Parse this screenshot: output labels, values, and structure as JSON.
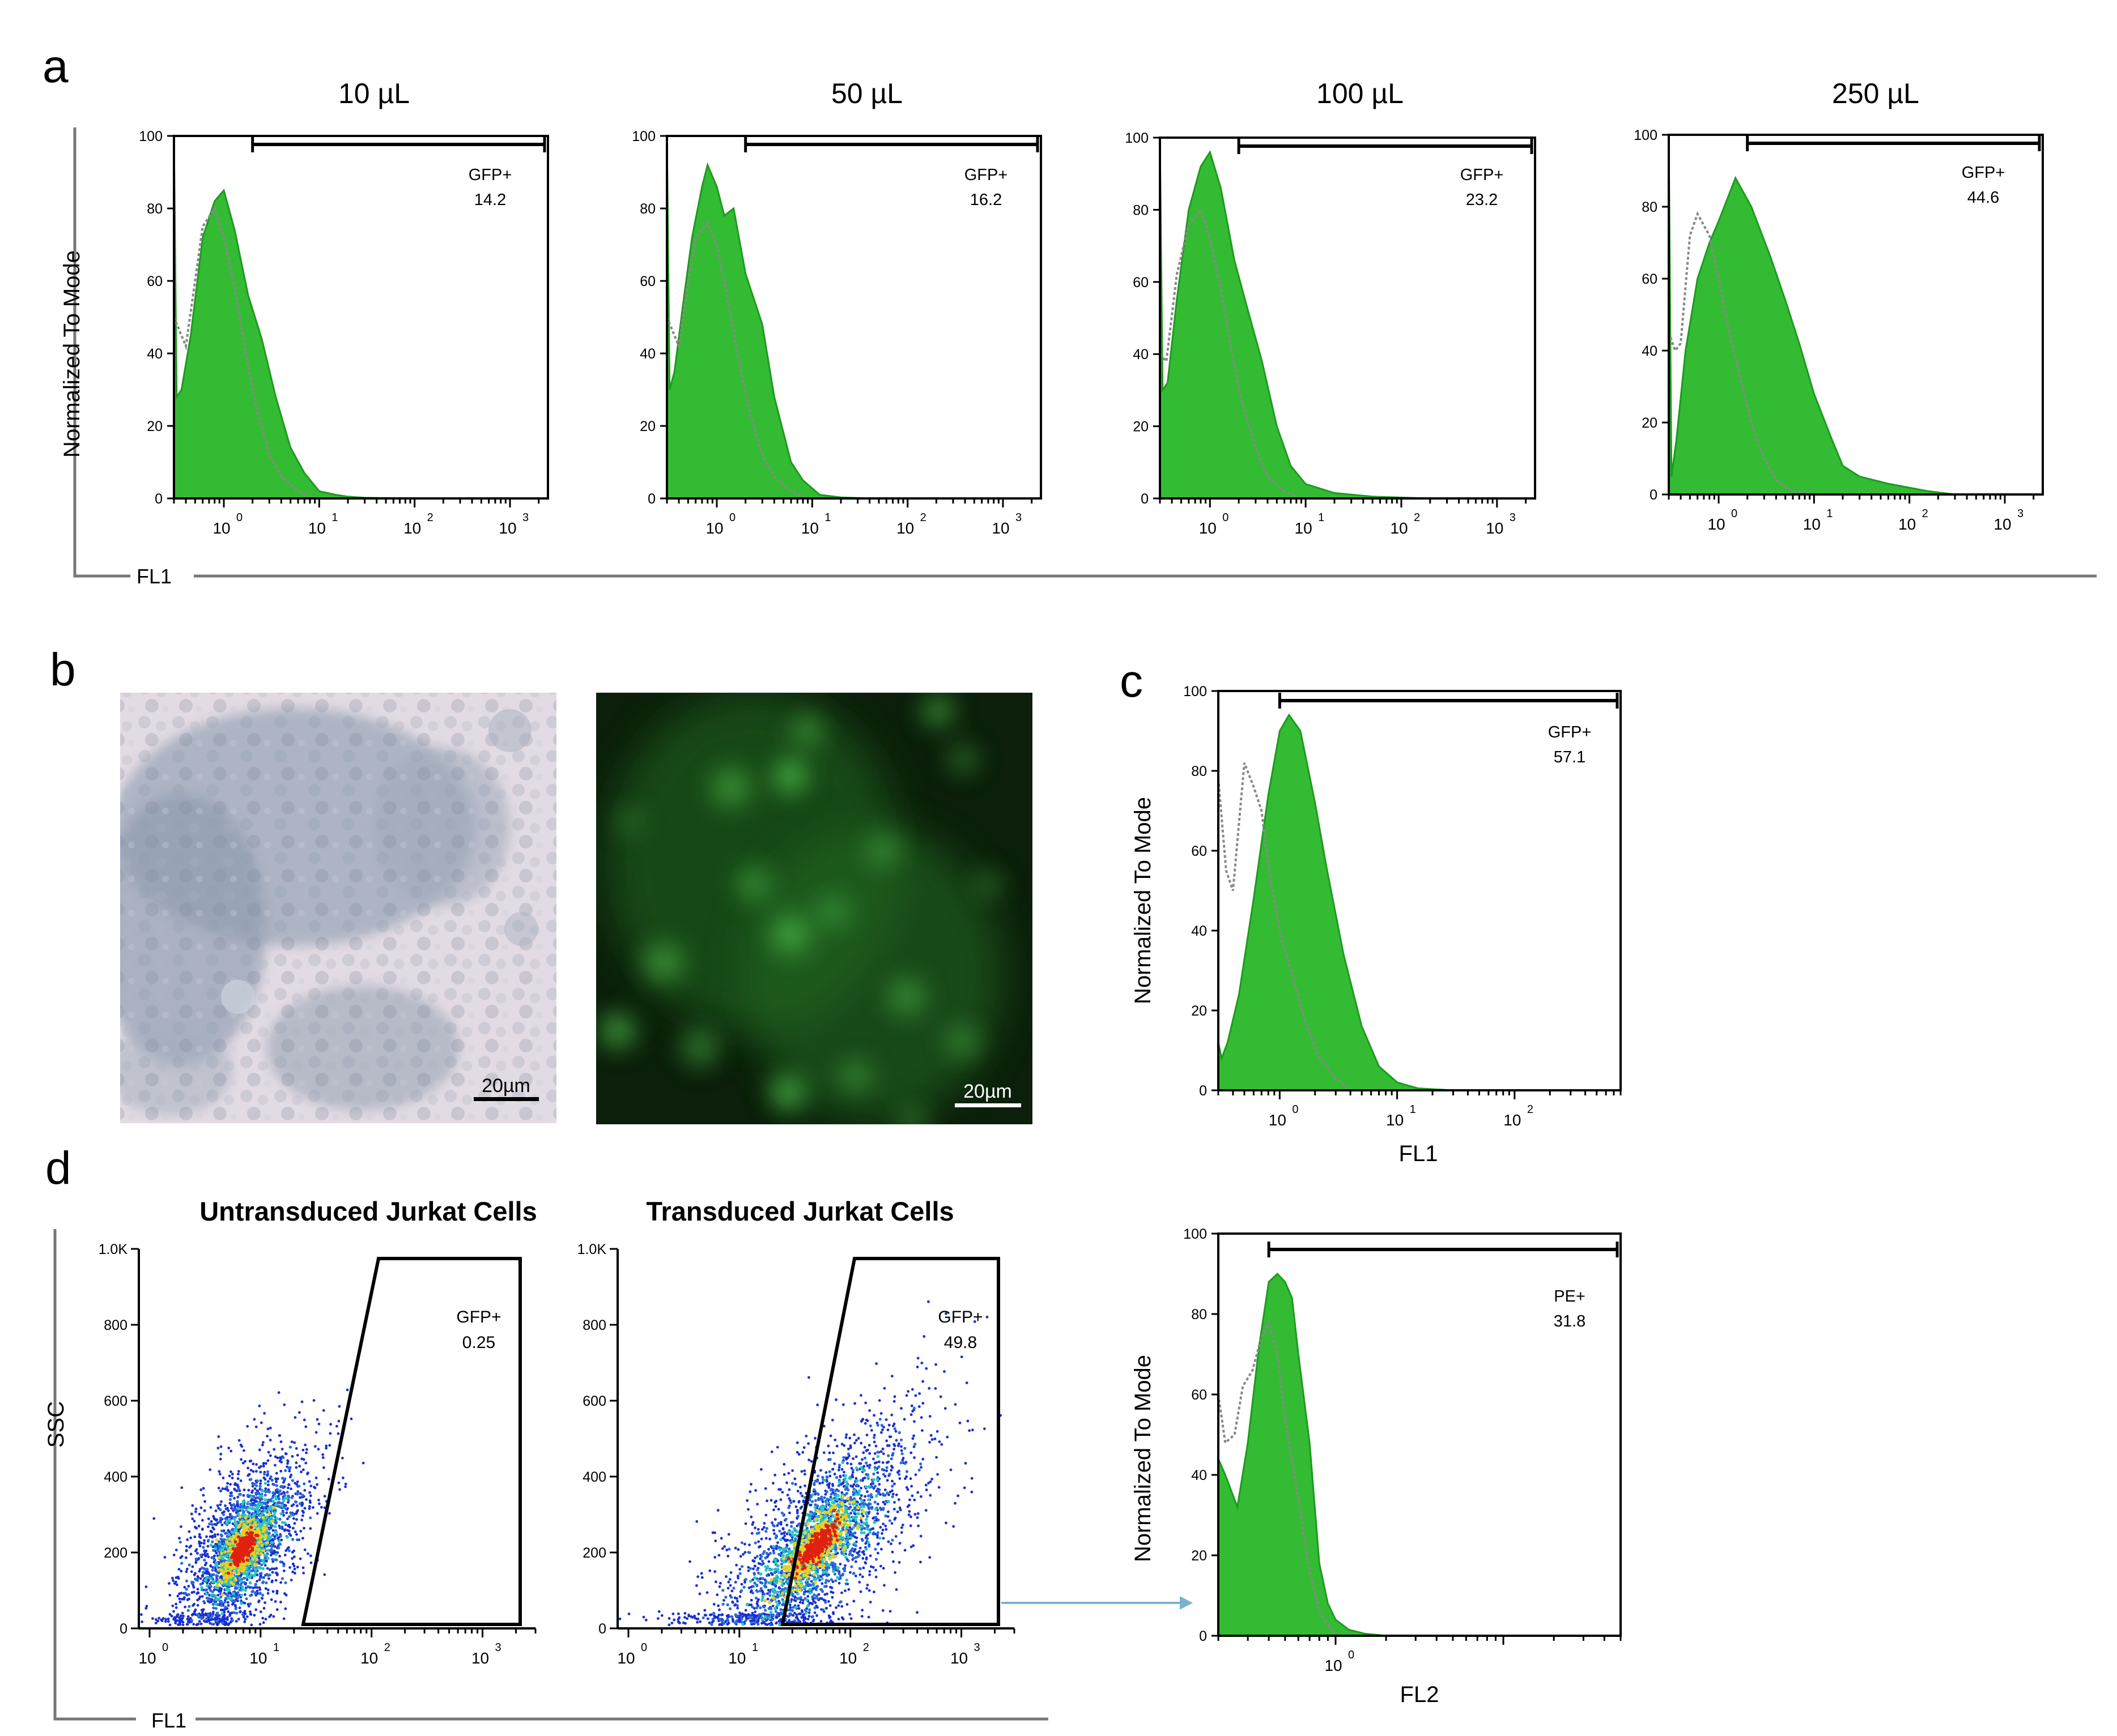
{
  "panel_labels": {
    "a": "a",
    "b": "b",
    "c": "c",
    "d": "d"
  },
  "panel_a": {
    "y_label": "Normalized To Mode",
    "x_label": "FL1",
    "gate_name": "GFP+",
    "y_ticks": [
      "0",
      "20",
      "40",
      "60",
      "80",
      "100"
    ],
    "x_ticks": [
      "10",
      "10",
      "10",
      "10"
    ],
    "x_exponents": [
      "0",
      "1",
      "2",
      "3"
    ],
    "histograms": [
      {
        "title": "10 µL",
        "gate_value": "14.2"
      },
      {
        "title": "50 µL",
        "gate_value": "16.2"
      },
      {
        "title": "100 µL",
        "gate_value": "23.2"
      },
      {
        "title": "250 µL",
        "gate_value": "44.6"
      }
    ]
  },
  "panel_b": {
    "brightfield_scale_bar": "20µm",
    "fluorescence_scale_bar": "20µm"
  },
  "panel_c": {
    "y_label": "Normalized To Mode",
    "x_label": "FL1",
    "gate_name": "GFP+",
    "gate_value": "57.1",
    "y_ticks": [
      "0",
      "20",
      "40",
      "60",
      "80",
      "100"
    ],
    "x_ticks": [
      "10",
      "10",
      "10"
    ],
    "x_exponents": [
      "0",
      "1",
      "2"
    ]
  },
  "panel_d": {
    "y_label": "SSC",
    "x_label": "FL1",
    "y_ticks": [
      "0",
      "200",
      "400",
      "600",
      "800",
      "1.0K"
    ],
    "x_ticks": [
      "10",
      "10",
      "10",
      "10"
    ],
    "x_exponents": [
      "0",
      "1",
      "2",
      "3"
    ],
    "untransduced": {
      "title": "Untransduced Jurkat Cells",
      "gate_name": "GFP+",
      "gate_value": "0.25"
    },
    "transduced": {
      "title": "Transduced Jurkat Cells",
      "gate_name": "GFP+",
      "gate_value": "49.8"
    },
    "pe_histogram": {
      "y_label": "Normalized To Mode",
      "x_label": "FL2",
      "gate_name": "PE+",
      "gate_value": "31.8",
      "y_ticks": [
        "0",
        "20",
        "40",
        "60",
        "80",
        "100"
      ],
      "x_tick": "10",
      "x_exponent": "0"
    }
  },
  "colors": {
    "histogram_fill": "#33bb33",
    "histogram_edge": "#1e9a1e",
    "control_line": "#888888",
    "arrow": "#7ab3cc",
    "density_low": "#1a2fd0",
    "density_mid": "#25c8c0",
    "density_high": "#e8d020",
    "density_peak": "#e02010"
  },
  "chart_data": [
    {
      "type": "area",
      "panel": "a",
      "title": "10 µL",
      "xlabel": "FL1",
      "ylabel": "Normalized To Mode",
      "x_scale": "log",
      "xlim": [
        0.3,
        2500
      ],
      "ylim": [
        0,
        100
      ],
      "gate": {
        "label": "GFP+",
        "value": 14.2,
        "range": [
          2,
          2500
        ]
      },
      "series": [
        {
          "name": "",
          "x": [
            0.3,
            0.32,
            0.36,
            0.45,
            0.6,
            0.8,
            1.0,
            1.3,
            1.8,
            2.5,
            3.5,
            5,
            7,
            10,
            15,
            20,
            30,
            100
          ],
          "y": [
            100,
            28,
            30,
            45,
            72,
            82,
            85,
            74,
            56,
            44,
            28,
            14,
            7,
            2,
            1,
            0.5,
            0.2,
            0
          ]
        },
        {
          "name": "",
          "x": [
            0.3,
            0.4,
            0.5,
            0.6,
            0.8,
            1.0,
            1.3,
            1.7,
            2.2,
            3,
            4,
            6,
            9
          ],
          "y": [
            50,
            42,
            60,
            75,
            80,
            72,
            58,
            40,
            25,
            12,
            6,
            2,
            0
          ]
        }
      ]
    },
    {
      "type": "area",
      "panel": "a",
      "title": "50 µL",
      "xlabel": "FL1",
      "ylabel": "Normalized To Mode",
      "x_scale": "log",
      "xlim": [
        0.3,
        2500
      ],
      "ylim": [
        0,
        100
      ],
      "gate": {
        "label": "GFP+",
        "value": 16.2,
        "range": [
          2,
          2500
        ]
      },
      "series": [
        {
          "name": "",
          "x": [
            0.3,
            0.32,
            0.36,
            0.45,
            0.55,
            0.7,
            0.8,
            1.0,
            1.2,
            1.5,
            2.0,
            3.0,
            4.0,
            6.0,
            8.0,
            12,
            20,
            40
          ],
          "y": [
            100,
            30,
            35,
            55,
            72,
            86,
            92,
            86,
            78,
            80,
            62,
            48,
            28,
            10,
            5,
            1,
            0.3,
            0
          ]
        },
        {
          "name": "",
          "x": [
            0.3,
            0.4,
            0.5,
            0.6,
            0.8,
            1.0,
            1.3,
            1.7,
            2.2,
            3,
            4,
            6,
            9
          ],
          "y": [
            50,
            42,
            60,
            72,
            76,
            70,
            55,
            38,
            24,
            12,
            6,
            2,
            0
          ]
        }
      ]
    },
    {
      "type": "area",
      "panel": "a",
      "title": "100 µL",
      "xlabel": "FL1",
      "ylabel": "Normalized To Mode",
      "x_scale": "log",
      "xlim": [
        0.3,
        2500
      ],
      "ylim": [
        0,
        100
      ],
      "gate": {
        "label": "GFP+",
        "value": 23.2,
        "range": [
          2,
          2500
        ]
      },
      "series": [
        {
          "name": "",
          "x": [
            0.3,
            0.32,
            0.36,
            0.45,
            0.6,
            0.8,
            1.0,
            1.3,
            1.8,
            2.5,
            3.5,
            5,
            7,
            10,
            20,
            50,
            200
          ],
          "y": [
            100,
            30,
            32,
            55,
            80,
            92,
            96,
            86,
            66,
            52,
            38,
            20,
            9,
            4,
            1.5,
            0.5,
            0
          ]
        },
        {
          "name": "",
          "x": [
            0.3,
            0.35,
            0.45,
            0.6,
            0.8,
            1.0,
            1.3,
            1.7,
            2.2,
            3,
            4,
            6,
            9
          ],
          "y": [
            40,
            38,
            62,
            76,
            80,
            72,
            58,
            40,
            26,
            14,
            6,
            2,
            0
          ]
        }
      ]
    },
    {
      "type": "area",
      "panel": "a",
      "title": "250 µL",
      "xlabel": "FL1",
      "ylabel": "Normalized To Mode",
      "x_scale": "log",
      "xlim": [
        0.3,
        2500
      ],
      "ylim": [
        0,
        100
      ],
      "gate": {
        "label": "GFP+",
        "value": 44.6,
        "range": [
          2,
          2500
        ]
      },
      "series": [
        {
          "name": "",
          "x": [
            0.3,
            0.32,
            0.36,
            0.45,
            0.6,
            0.8,
            1.0,
            1.5,
            2.2,
            3.5,
            5,
            7,
            10,
            15,
            20,
            30,
            60,
            150,
            300
          ],
          "y": [
            100,
            5,
            15,
            40,
            60,
            70,
            76,
            88,
            80,
            66,
            54,
            42,
            28,
            16,
            8,
            5,
            3,
            1,
            0
          ]
        },
        {
          "name": "",
          "x": [
            0.3,
            0.35,
            0.4,
            0.5,
            0.6,
            0.8,
            1.0,
            1.3,
            1.7,
            2.2,
            3,
            4,
            6,
            10
          ],
          "y": [
            45,
            40,
            42,
            72,
            78,
            72,
            60,
            45,
            32,
            20,
            10,
            4,
            1,
            0
          ]
        }
      ]
    },
    {
      "type": "area",
      "panel": "c",
      "title": "",
      "xlabel": "FL1",
      "ylabel": "Normalized To Mode",
      "x_scale": "log",
      "xlim": [
        0.3,
        800
      ],
      "ylim": [
        0,
        100
      ],
      "gate": {
        "label": "GFP+",
        "value": 57.1,
        "range": [
          1,
          800
        ]
      },
      "series": [
        {
          "name": "",
          "x": [
            0.3,
            0.32,
            0.36,
            0.45,
            0.6,
            0.8,
            1.0,
            1.2,
            1.5,
            2.0,
            2.5,
            3.5,
            5,
            7,
            10,
            15,
            30
          ],
          "y": [
            12,
            8,
            12,
            24,
            48,
            74,
            90,
            94,
            90,
            72,
            56,
            34,
            16,
            6,
            2,
            0.5,
            0
          ]
        },
        {
          "name": "",
          "x": [
            0.3,
            0.35,
            0.4,
            0.5,
            0.6,
            0.7,
            0.8,
            1.0,
            1.3,
            1.7,
            2.2,
            3,
            4
          ],
          "y": [
            78,
            55,
            50,
            82,
            76,
            70,
            56,
            40,
            28,
            16,
            8,
            3,
            0
          ]
        }
      ]
    },
    {
      "type": "scatter",
      "panel": "d",
      "title": "Untransduced Jurkat Cells",
      "xlabel": "FL1",
      "ylabel": "SSC",
      "x_scale": "log",
      "xlim": [
        0.8,
        3000
      ],
      "ylim": [
        0,
        1000
      ],
      "gate": {
        "label": "GFP+",
        "value": 0.25
      },
      "density_center": {
        "x": 7,
        "y": 210
      }
    },
    {
      "type": "scatter",
      "panel": "d",
      "title": "Transduced Jurkat Cells",
      "xlabel": "FL1",
      "ylabel": "SSC",
      "x_scale": "log",
      "xlim": [
        0.8,
        3000
      ],
      "ylim": [
        0,
        1000
      ],
      "gate": {
        "label": "GFP+",
        "value": 49.8
      },
      "density_center": {
        "x": 50,
        "y": 220
      }
    },
    {
      "type": "area",
      "panel": "d",
      "title": "",
      "xlabel": "FL2",
      "ylabel": "Normalized To Mode",
      "x_scale": "log",
      "xlim": [
        0.2,
        50
      ],
      "ylim": [
        0,
        100
      ],
      "gate": {
        "label": "PE+",
        "value": 31.8,
        "range": [
          0.4,
          50
        ]
      },
      "series": [
        {
          "name": "",
          "x": [
            0.2,
            0.22,
            0.26,
            0.3,
            0.35,
            0.4,
            0.45,
            0.5,
            0.55,
            0.6,
            0.7,
            0.8,
            0.9,
            1.0,
            1.2,
            1.5,
            2
          ],
          "y": [
            44,
            40,
            32,
            48,
            72,
            88,
            90,
            88,
            84,
            70,
            48,
            18,
            8,
            4,
            1.5,
            0.5,
            0
          ]
        },
        {
          "name": "",
          "x": [
            0.2,
            0.22,
            0.25,
            0.28,
            0.32,
            0.36,
            0.4,
            0.45,
            0.5,
            0.6,
            0.7,
            0.8,
            1.0
          ],
          "y": [
            60,
            48,
            50,
            62,
            66,
            74,
            78,
            70,
            54,
            34,
            16,
            6,
            0
          ]
        }
      ]
    }
  ]
}
